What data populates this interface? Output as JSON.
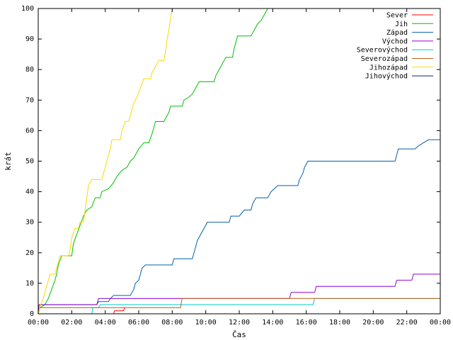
{
  "chart_data": {
    "type": "line",
    "title": "",
    "xlabel": "Čas",
    "ylabel": "krát",
    "xlim": [
      0,
      24
    ],
    "ylim": [
      0,
      100
    ],
    "x_ticks": [
      {
        "v": 0,
        "label": "00:00"
      },
      {
        "v": 2,
        "label": "02:00"
      },
      {
        "v": 4,
        "label": "04:00"
      },
      {
        "v": 6,
        "label": "06:00"
      },
      {
        "v": 8,
        "label": "08:00"
      },
      {
        "v": 10,
        "label": "10:00"
      },
      {
        "v": 12,
        "label": "12:00"
      },
      {
        "v": 14,
        "label": "14:00"
      },
      {
        "v": 16,
        "label": "16:00"
      },
      {
        "v": 18,
        "label": "18:00"
      },
      {
        "v": 20,
        "label": "20:00"
      },
      {
        "v": 22,
        "label": "22:00"
      },
      {
        "v": 24,
        "label": "00:00"
      }
    ],
    "y_ticks": [
      {
        "v": 0,
        "label": "0"
      },
      {
        "v": 10,
        "label": "10"
      },
      {
        "v": 20,
        "label": "20"
      },
      {
        "v": 30,
        "label": "30"
      },
      {
        "v": 40,
        "label": "40"
      },
      {
        "v": 50,
        "label": "50"
      },
      {
        "v": 60,
        "label": "60"
      },
      {
        "v": 70,
        "label": "70"
      },
      {
        "v": 80,
        "label": "80"
      },
      {
        "v": 90,
        "label": "90"
      },
      {
        "v": 100,
        "label": "100"
      }
    ],
    "grid": false,
    "legend_position": "top-right",
    "series": [
      {
        "name": "Sever",
        "color": "#ff0000",
        "points": [
          [
            4.5,
            0
          ],
          [
            4.55,
            1
          ],
          [
            5.1,
            1
          ],
          [
            5.15,
            2
          ],
          [
            5.2,
            2
          ]
        ]
      },
      {
        "name": "Jih",
        "color": "#00c000",
        "points": [
          [
            0,
            0
          ],
          [
            0.1,
            2
          ],
          [
            0.4,
            3
          ],
          [
            0.6,
            5
          ],
          [
            0.8,
            8
          ],
          [
            1.0,
            11
          ],
          [
            1.1,
            13
          ],
          [
            1.2,
            16
          ],
          [
            1.4,
            19
          ],
          [
            2.0,
            19
          ],
          [
            2.1,
            23
          ],
          [
            2.3,
            26
          ],
          [
            2.5,
            29
          ],
          [
            2.7,
            32
          ],
          [
            2.9,
            34
          ],
          [
            3.2,
            35
          ],
          [
            3.4,
            38
          ],
          [
            3.7,
            38
          ],
          [
            3.8,
            40
          ],
          [
            4.2,
            41
          ],
          [
            4.5,
            43
          ],
          [
            4.7,
            45
          ],
          [
            5.0,
            47
          ],
          [
            5.3,
            48
          ],
          [
            5.5,
            50
          ],
          [
            5.7,
            51
          ],
          [
            5.9,
            53
          ],
          [
            6.0,
            54
          ],
          [
            6.3,
            56
          ],
          [
            6.6,
            56
          ],
          [
            6.8,
            59
          ],
          [
            6.9,
            61
          ],
          [
            7.0,
            63
          ],
          [
            7.5,
            63
          ],
          [
            7.6,
            64
          ],
          [
            7.8,
            66
          ],
          [
            7.9,
            68
          ],
          [
            8.6,
            68
          ],
          [
            8.7,
            70
          ],
          [
            9.0,
            71
          ],
          [
            9.2,
            72
          ],
          [
            9.4,
            74
          ],
          [
            9.6,
            76
          ],
          [
            10.5,
            76
          ],
          [
            10.6,
            78
          ],
          [
            10.8,
            80
          ],
          [
            11.0,
            82
          ],
          [
            11.2,
            84
          ],
          [
            11.6,
            84
          ],
          [
            11.7,
            87
          ],
          [
            11.8,
            89
          ],
          [
            11.9,
            91
          ],
          [
            12.7,
            91
          ],
          [
            12.9,
            93
          ],
          [
            13.1,
            95
          ],
          [
            13.3,
            96
          ],
          [
            13.5,
            98
          ],
          [
            13.6,
            99
          ],
          [
            13.7,
            100
          ],
          [
            14.0,
            100
          ]
        ]
      },
      {
        "name": "Západ",
        "color": "#0060ad",
        "points": [
          [
            0,
            0
          ],
          [
            0.05,
            1
          ],
          [
            0.1,
            2
          ],
          [
            0.15,
            3
          ],
          [
            0.7,
            3
          ],
          [
            0.75,
            3
          ],
          [
            3.5,
            3
          ],
          [
            3.6,
            4
          ],
          [
            4.2,
            4
          ],
          [
            4.3,
            5
          ],
          [
            4.5,
            6
          ],
          [
            5.5,
            6
          ],
          [
            5.6,
            7
          ],
          [
            5.7,
            8
          ],
          [
            5.8,
            10
          ],
          [
            6.0,
            11
          ],
          [
            6.1,
            13
          ],
          [
            6.2,
            15
          ],
          [
            6.4,
            16
          ],
          [
            8.0,
            16
          ],
          [
            8.1,
            18
          ],
          [
            9.2,
            18
          ],
          [
            9.3,
            20
          ],
          [
            9.4,
            22
          ],
          [
            9.5,
            24
          ],
          [
            9.7,
            26
          ],
          [
            9.9,
            28
          ],
          [
            10.1,
            30
          ],
          [
            11.4,
            30
          ],
          [
            11.5,
            32
          ],
          [
            12.0,
            32
          ],
          [
            12.3,
            34
          ],
          [
            12.7,
            34
          ],
          [
            12.8,
            36
          ],
          [
            13.0,
            38
          ],
          [
            13.7,
            38
          ],
          [
            13.9,
            40
          ],
          [
            14.3,
            42
          ],
          [
            15.5,
            42
          ],
          [
            15.6,
            44
          ],
          [
            15.8,
            46
          ],
          [
            15.9,
            48
          ],
          [
            16.1,
            50
          ],
          [
            21.3,
            50
          ],
          [
            21.5,
            54
          ],
          [
            22.5,
            54
          ],
          [
            22.7,
            55
          ],
          [
            23.0,
            56
          ],
          [
            23.3,
            57
          ],
          [
            24.0,
            57
          ]
        ]
      },
      {
        "name": "Východ",
        "color": "#9400d3",
        "points": [
          [
            0,
            0
          ],
          [
            0.05,
            3
          ],
          [
            3.5,
            3
          ],
          [
            3.6,
            5
          ],
          [
            15.0,
            5
          ],
          [
            15.1,
            7
          ],
          [
            16.5,
            7
          ],
          [
            16.6,
            9
          ],
          [
            21.3,
            9
          ],
          [
            21.4,
            11
          ],
          [
            22.3,
            11
          ],
          [
            22.4,
            13
          ],
          [
            24.0,
            13
          ]
        ]
      },
      {
        "name": "Severovýchod",
        "color": "#00c8c8",
        "points": [
          [
            3.2,
            0
          ],
          [
            3.25,
            2
          ],
          [
            3.6,
            2
          ],
          [
            3.7,
            3
          ],
          [
            16.4,
            3
          ],
          [
            16.5,
            5
          ],
          [
            24.0,
            5
          ]
        ]
      },
      {
        "name": "Severozápad",
        "color": "#c0601a",
        "points": [
          [
            0,
            0
          ],
          [
            0.05,
            1
          ],
          [
            0.1,
            2
          ],
          [
            8.5,
            2
          ],
          [
            8.55,
            4
          ],
          [
            8.6,
            5
          ],
          [
            24.0,
            5
          ]
        ]
      },
      {
        "name": "Jihozápad",
        "color": "#ffd700",
        "points": [
          [
            0,
            0
          ],
          [
            0.15,
            3
          ],
          [
            0.3,
            5
          ],
          [
            0.5,
            9
          ],
          [
            0.7,
            13
          ],
          [
            1.0,
            13
          ],
          [
            1.2,
            17
          ],
          [
            1.3,
            19
          ],
          [
            1.8,
            19
          ],
          [
            1.9,
            21
          ],
          [
            2.0,
            25
          ],
          [
            2.2,
            28
          ],
          [
            2.4,
            28
          ],
          [
            2.5,
            30
          ],
          [
            2.7,
            30
          ],
          [
            2.8,
            34
          ],
          [
            2.9,
            38
          ],
          [
            3.0,
            42
          ],
          [
            3.2,
            44
          ],
          [
            3.8,
            44
          ],
          [
            3.9,
            46
          ],
          [
            4.1,
            50
          ],
          [
            4.3,
            54
          ],
          [
            4.4,
            57
          ],
          [
            4.9,
            57
          ],
          [
            5.0,
            60
          ],
          [
            5.2,
            63
          ],
          [
            5.4,
            63
          ],
          [
            5.5,
            65
          ],
          [
            5.6,
            67
          ],
          [
            5.7,
            69
          ],
          [
            5.9,
            71
          ],
          [
            6.1,
            74
          ],
          [
            6.3,
            77
          ],
          [
            6.7,
            77
          ],
          [
            6.8,
            79
          ],
          [
            7.0,
            81
          ],
          [
            7.2,
            83
          ],
          [
            7.5,
            83
          ],
          [
            7.6,
            86
          ],
          [
            7.7,
            90
          ],
          [
            7.8,
            93
          ],
          [
            7.9,
            97
          ],
          [
            8.0,
            100
          ]
        ]
      },
      {
        "name": "Jihovýchod",
        "color": "#1c1c8c",
        "points": []
      }
    ]
  }
}
